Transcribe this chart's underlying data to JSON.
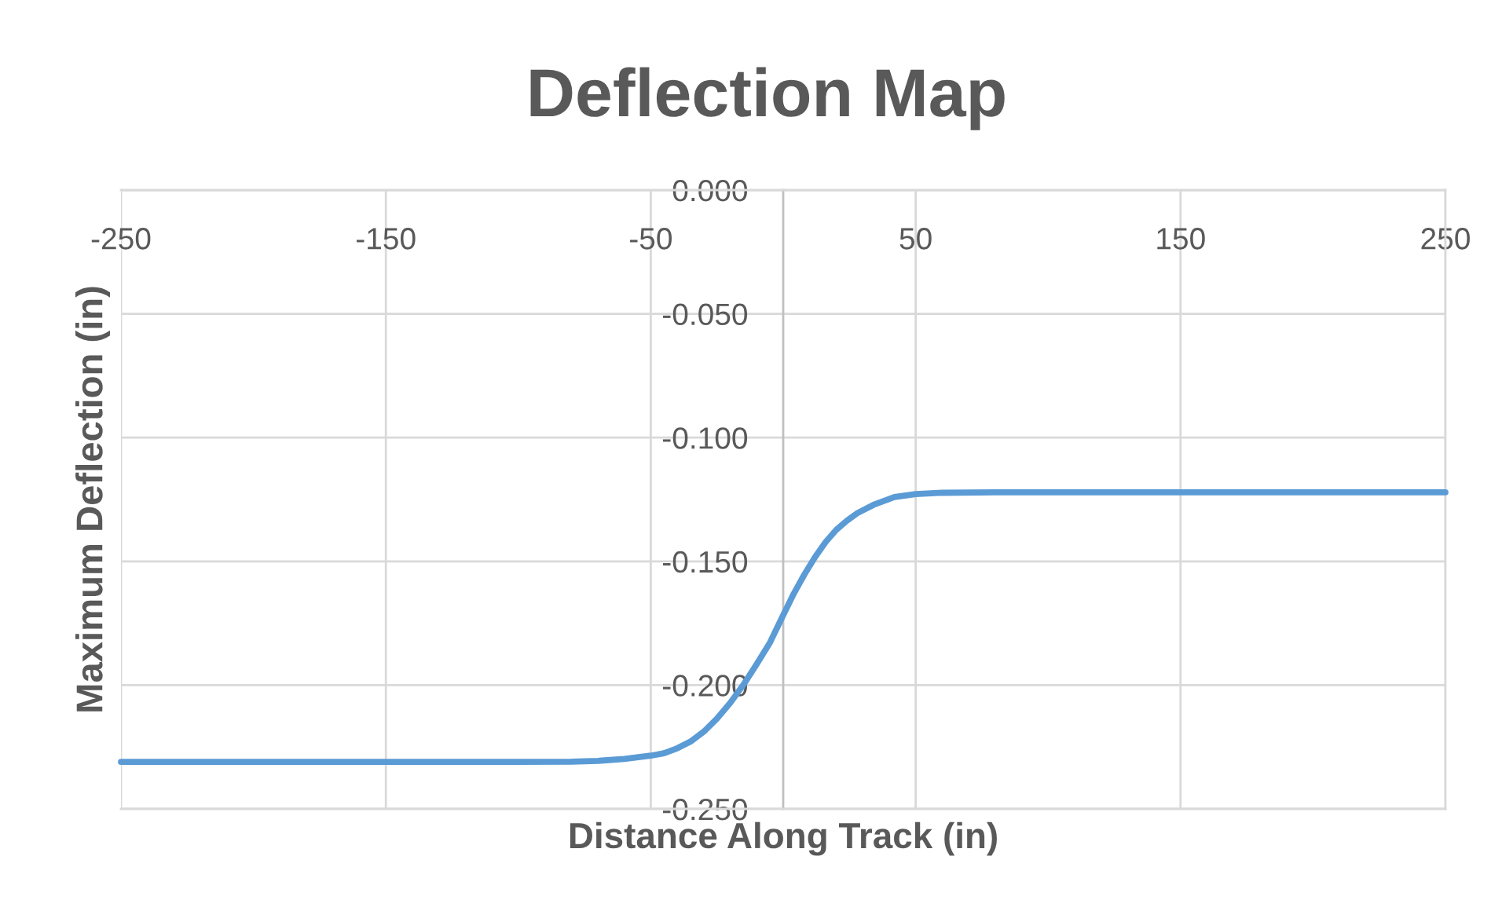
{
  "chart_data": {
    "type": "line",
    "title": "Deflection Map",
    "xlabel": "Distance Along Track (in)",
    "ylabel": "Maximum Deflection (in)",
    "x": [
      -250,
      -200,
      -150,
      -100,
      -80,
      -70,
      -60,
      -50,
      -45,
      -40,
      -35,
      -30,
      -25,
      -20,
      -15,
      -10,
      -5,
      0,
      4,
      8,
      12,
      16,
      20,
      24,
      28,
      34,
      42,
      50,
      60,
      80,
      150,
      250
    ],
    "series": [
      {
        "color": "#5b9bd5",
        "values": [
          -0.231,
          -0.231,
          -0.231,
          -0.231,
          -0.2309,
          -0.2306,
          -0.2298,
          -0.2285,
          -0.2275,
          -0.2255,
          -0.2228,
          -0.2188,
          -0.2135,
          -0.2072,
          -0.1998,
          -0.1915,
          -0.1828,
          -0.1717,
          -0.163,
          -0.1553,
          -0.1483,
          -0.1422,
          -0.1373,
          -0.1336,
          -0.1305,
          -0.1272,
          -0.124,
          -0.1228,
          -0.1223,
          -0.1221,
          -0.1221,
          -0.1221
        ]
      }
    ],
    "xlim": [
      -250,
      250
    ],
    "xticks": [
      -250,
      -150,
      -50,
      50,
      150,
      250
    ],
    "ylim": [
      -0.25,
      0
    ],
    "yticks": [
      {
        "value": 0,
        "label": "0.000"
      },
      {
        "value": -0.05,
        "label": "-0.050"
      },
      {
        "value": -0.1,
        "label": "-0.100"
      },
      {
        "value": -0.15,
        "label": "-0.150"
      },
      {
        "value": -0.2,
        "label": "-0.200"
      },
      {
        "value": -0.25,
        "label": "-0.250"
      }
    ],
    "grid": true
  }
}
